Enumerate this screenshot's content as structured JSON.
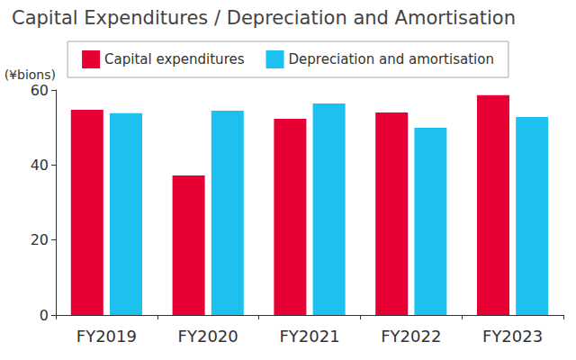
{
  "chart_data": {
    "type": "bar",
    "title": "Capital Expenditures / Depreciation and Amortisation",
    "ylabel": "(¥bions)",
    "categories": [
      "FY2019",
      "FY2020",
      "FY2021",
      "FY2022",
      "FY2023"
    ],
    "series": [
      {
        "name": "Capital expenditures",
        "color": "#e60033",
        "values": [
          54.7,
          37.2,
          52.3,
          54.0,
          58.6
        ]
      },
      {
        "name": "Depreciation and amortisation",
        "color": "#1ec0f0",
        "values": [
          53.8,
          54.5,
          56.4,
          49.9,
          52.8
        ]
      }
    ],
    "ylim": [
      0,
      60
    ],
    "yticks": [
      0,
      20,
      40,
      60
    ],
    "grid": false,
    "legend": "top"
  }
}
